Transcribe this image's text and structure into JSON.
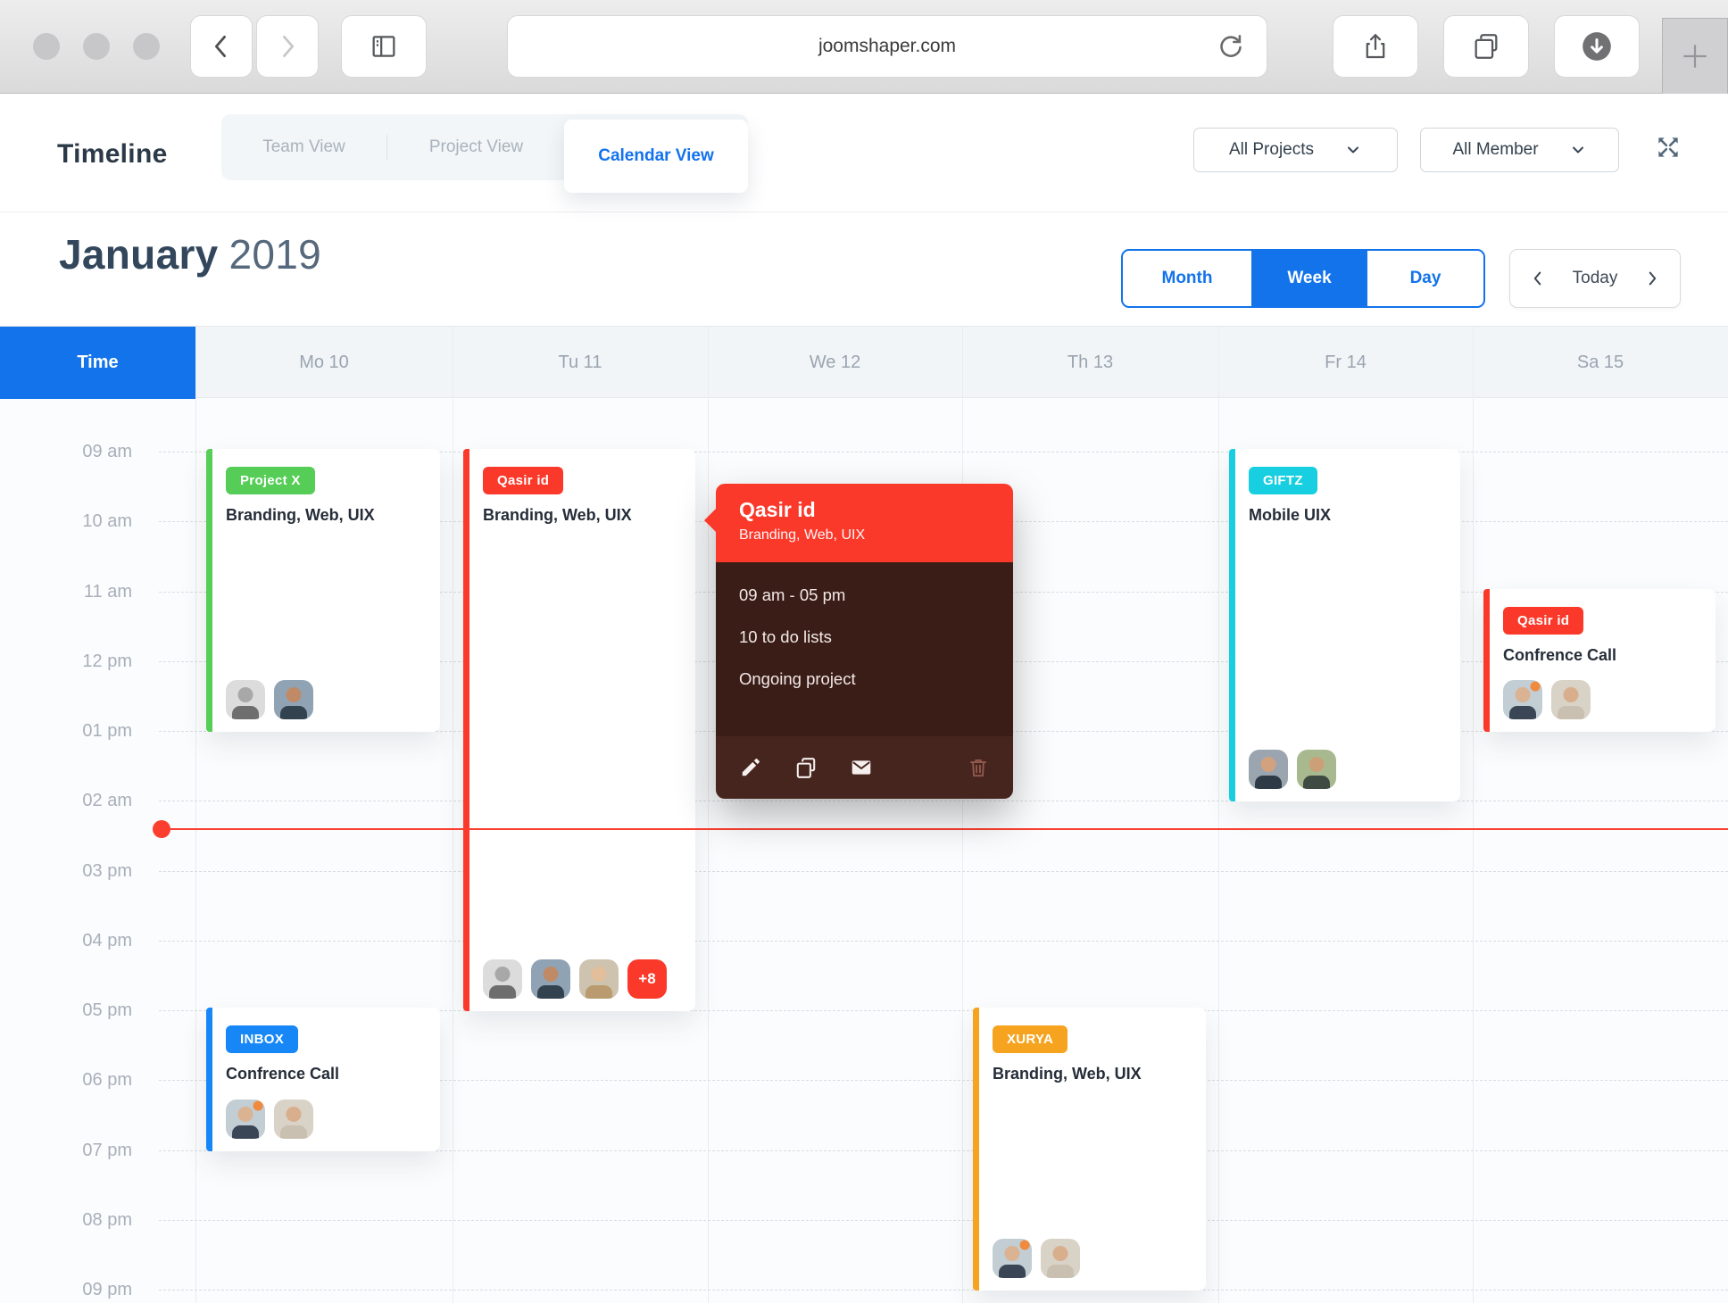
{
  "browser": {
    "url": "joomshaper.com"
  },
  "header": {
    "title": "Timeline",
    "tabs": [
      {
        "label": "Team View",
        "active": false
      },
      {
        "label": "Project View",
        "active": false
      },
      {
        "label": "Calendar View",
        "active": true
      }
    ],
    "filters": [
      {
        "label": "All Projects"
      },
      {
        "label": "All Member"
      }
    ]
  },
  "title_bar": {
    "month": "January",
    "year": "2019"
  },
  "view_switcher": {
    "options": [
      "Month",
      "Week",
      "Day"
    ],
    "active": "Week",
    "today_label": "Today"
  },
  "calendar": {
    "time_header": "Time",
    "days": [
      "Mo 10",
      "Tu 11",
      "We 12",
      "Th 13",
      "Fr 14",
      "Sa 15"
    ],
    "hours": [
      "09 am",
      "10 am",
      "11 am",
      "12 pm",
      "01 pm",
      "02 am",
      "03 pm",
      "04 pm",
      "05 pm",
      "06 pm",
      "07 pm",
      "08 pm",
      "09 pm"
    ],
    "events": [
      {
        "id": "project-x",
        "day": 0,
        "start": 0,
        "end": 4,
        "badge": "Project X",
        "accent": "#55CD56",
        "title": "Branding, Web, UIX",
        "avatars": [
          "gray",
          "suit"
        ],
        "extra": null
      },
      {
        "id": "qasir-id-tuesday",
        "day": 1,
        "start": 0,
        "end": 8,
        "badge": "Qasir id",
        "accent": "#FA392B",
        "title": "Branding, Web, UIX",
        "avatars": [
          "gray",
          "suit",
          "blonde"
        ],
        "extra": "+8"
      },
      {
        "id": "giftz",
        "day": 4,
        "start": 0,
        "end": 5,
        "badge": "GIFTZ",
        "accent": "#17CFE0",
        "title": "Mobile UIX",
        "avatars": [
          "dark",
          "beard"
        ],
        "extra": null
      },
      {
        "id": "qasir-id-saturday",
        "day": 5,
        "start": 2,
        "end": 4,
        "badge": "Qasir id",
        "accent": "#FA392B",
        "title": "Confrence Call",
        "avatars": [
          "scruff",
          "tan"
        ],
        "extra": null
      },
      {
        "id": "inbox",
        "day": 0,
        "start": 8,
        "end": 10,
        "badge": "INBOX",
        "accent": "#1787F7",
        "title": "Confrence Call",
        "avatars": [
          "scruff",
          "tan"
        ],
        "extra": null
      },
      {
        "id": "xurya",
        "day": 3,
        "start": 8,
        "end": 12,
        "badge": "XURYA",
        "accent": "#F6A41F",
        "title": "Branding, Web, UIX",
        "avatars": [
          "scruff",
          "tan"
        ],
        "extra": null
      }
    ],
    "popup": {
      "title": "Qasir id",
      "subtitle": "Branding, Web, UIX",
      "time_range": "09 am - 05 pm",
      "todo": "10 to do lists",
      "status": "Ongoing project"
    }
  },
  "colors": {
    "accent_blue": "#1273EB",
    "now_red": "#FB3E2E",
    "green": "#55CD56",
    "red": "#FA392B",
    "cyan": "#17CFE0",
    "orange": "#F6A41F",
    "popup_header": "#FA392B",
    "popup_body": "#3B1D18",
    "popup_footer": "#46251F"
  }
}
